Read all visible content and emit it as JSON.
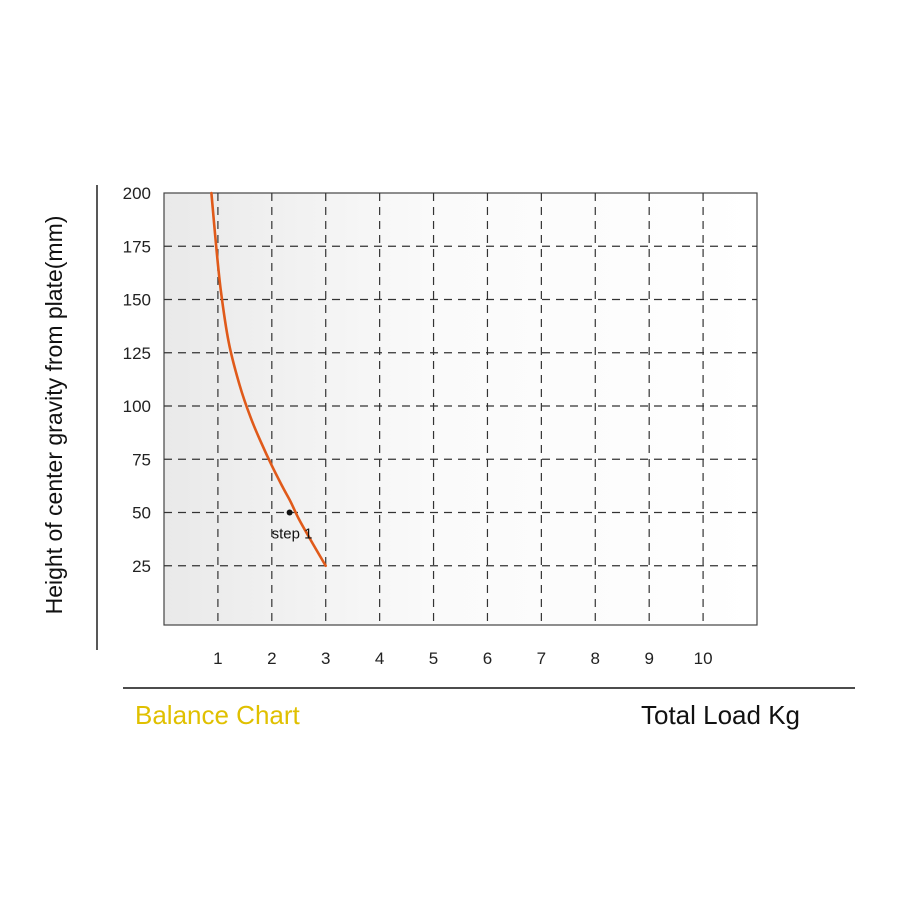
{
  "chart_data": {
    "type": "line",
    "title": "Balance Chart",
    "xlabel": "Total Load Kg",
    "ylabel": "Height of center gravity from plate(mm)",
    "xlim": [
      0,
      11
    ],
    "ylim": [
      0,
      200
    ],
    "x_ticks": [
      "1",
      "2",
      "3",
      "4",
      "5",
      "6",
      "7",
      "8",
      "9",
      "10"
    ],
    "y_ticks": [
      "25",
      "50",
      "75",
      "100",
      "125",
      "150",
      "175",
      "200"
    ],
    "grid": true,
    "series": [
      {
        "x": [
          0.88,
          0.95,
          1.05,
          1.2,
          1.4,
          1.6,
          1.8,
          2.0,
          2.2,
          2.35,
          2.5,
          2.7,
          3.0
        ],
        "y": [
          200,
          180,
          155,
          130,
          110,
          95,
          83,
          72,
          62,
          55,
          47,
          38,
          25
        ],
        "color": "#e05a1a"
      }
    ],
    "annotations": [
      {
        "label": "step 1",
        "x": 2.33,
        "y": 50
      }
    ],
    "colors": {
      "title": "#e0c000",
      "line": "#e05a1a"
    }
  }
}
